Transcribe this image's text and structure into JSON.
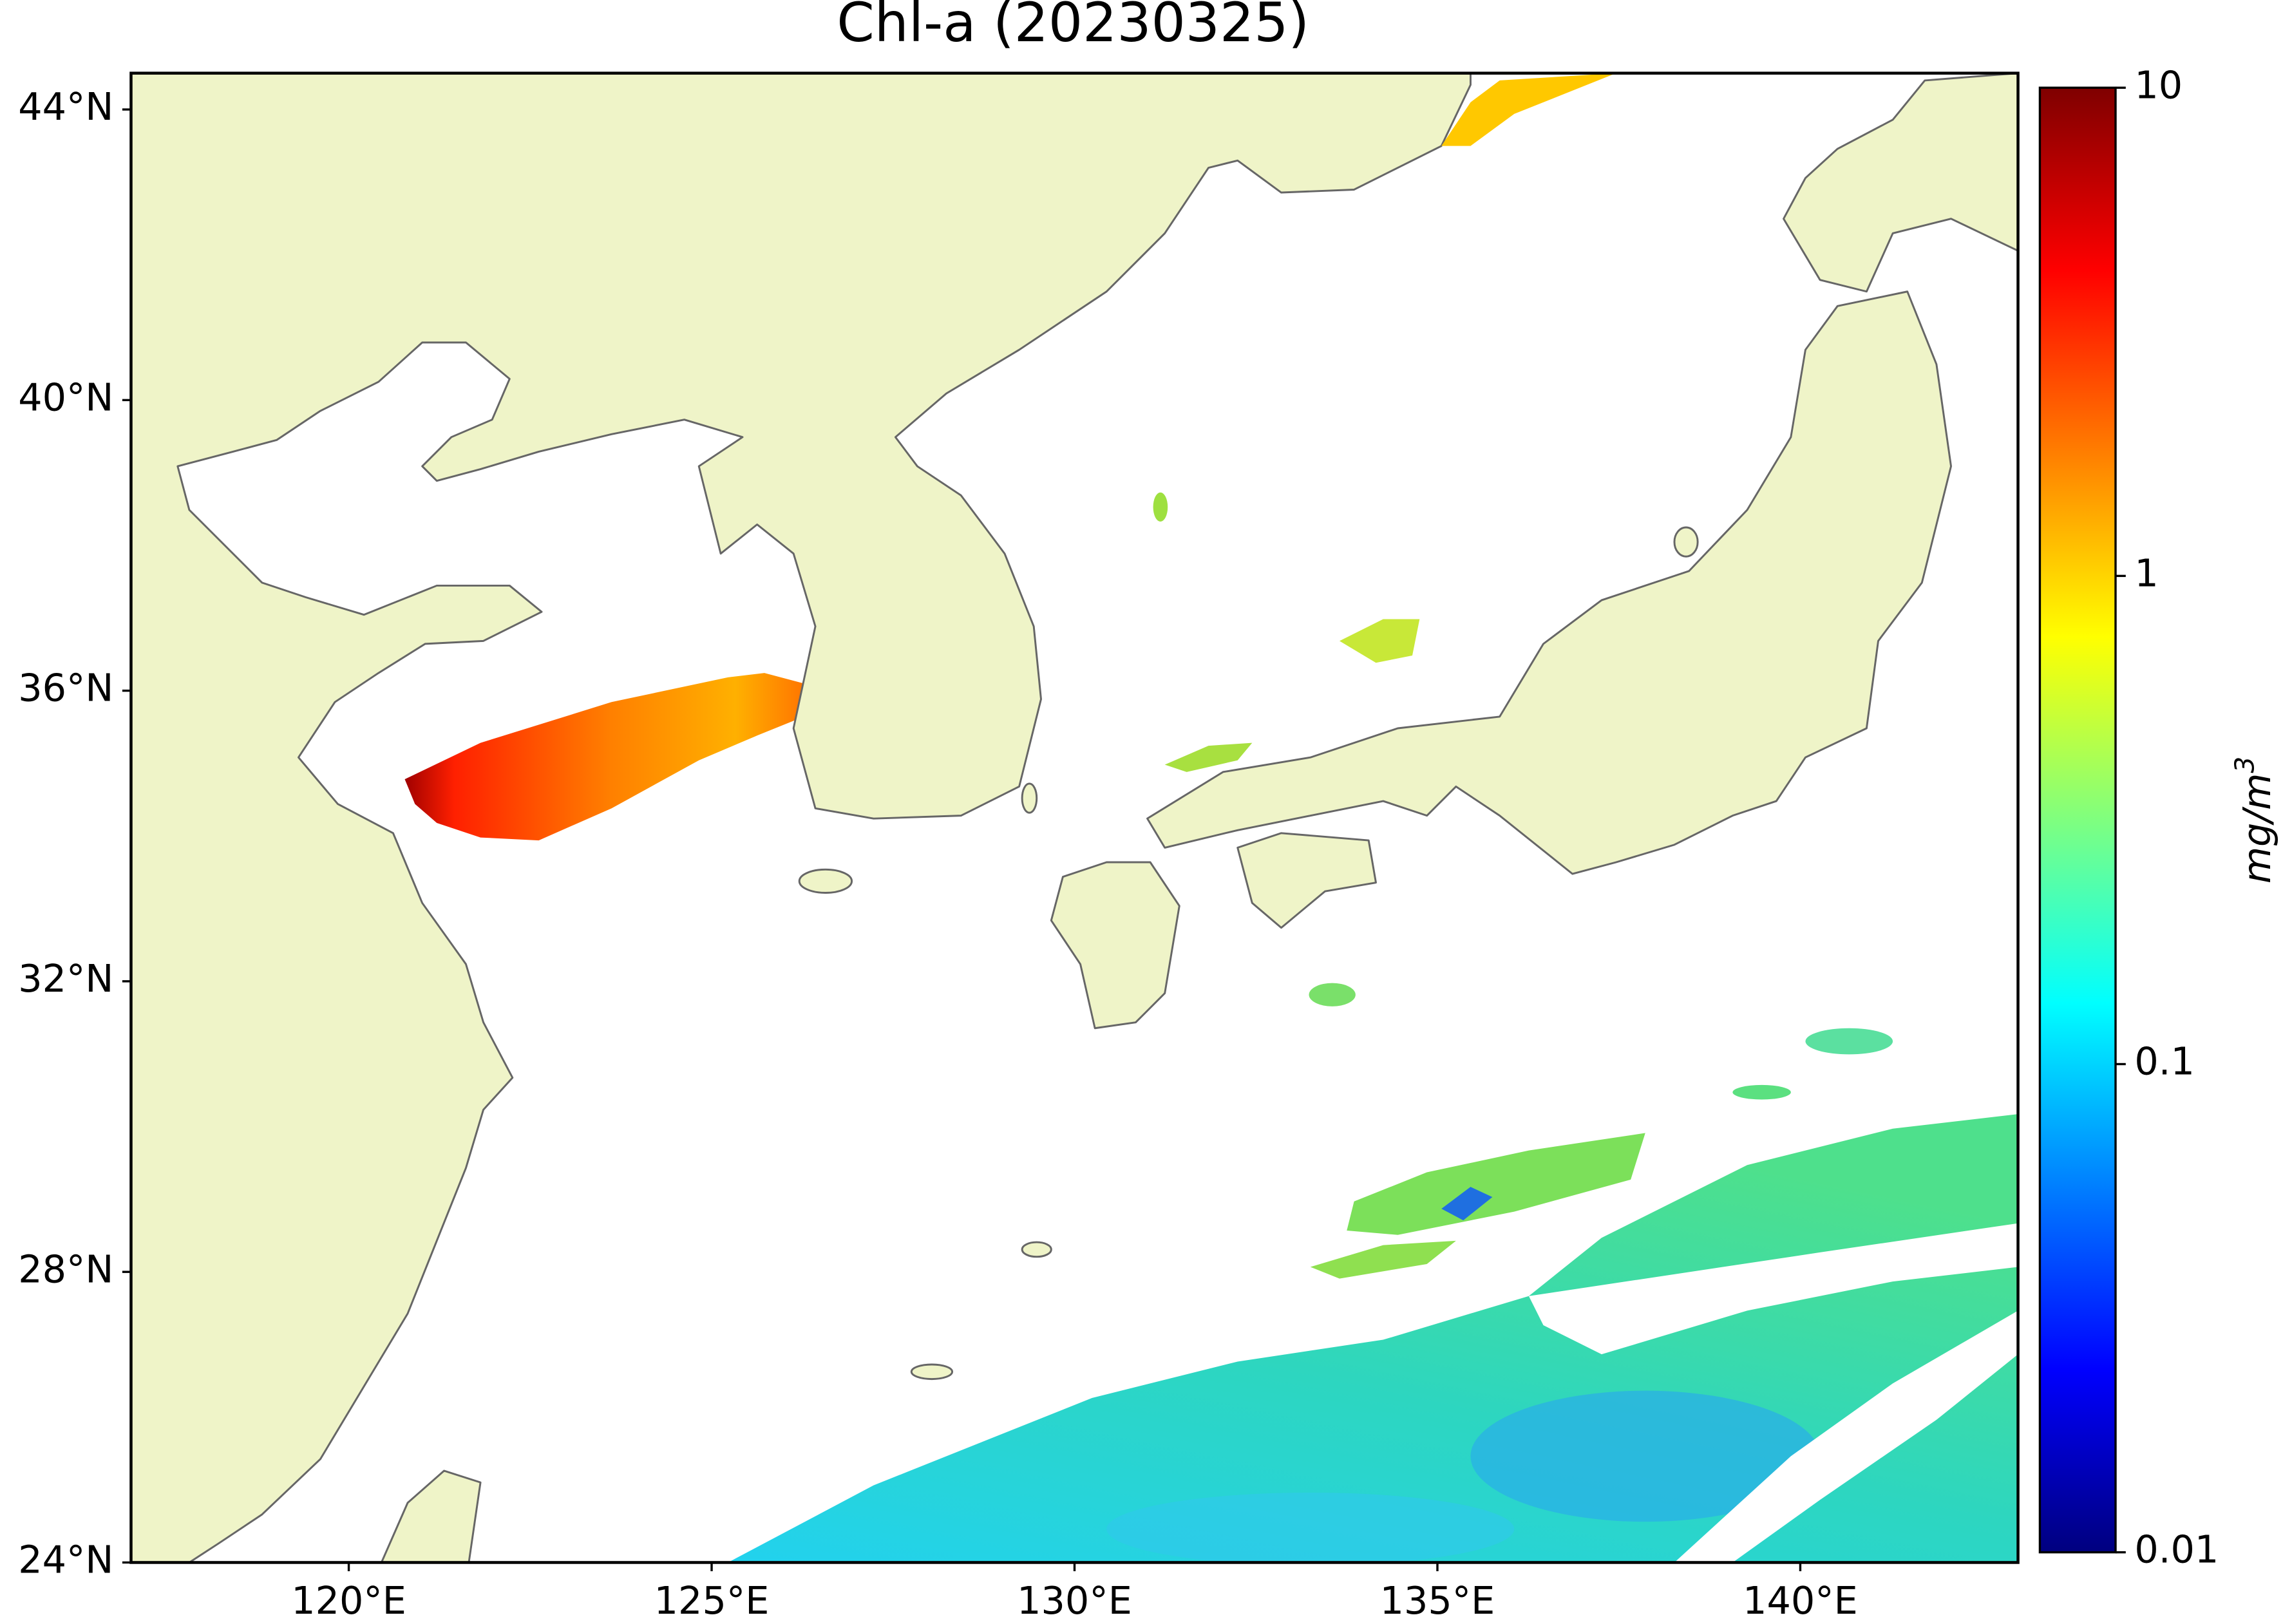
{
  "chart_data": {
    "type": "map",
    "title": "Chl-a (20230325)",
    "xlim": [
      117,
      143
    ],
    "ylim": [
      24,
      44.5
    ],
    "xticks": [
      {
        "value": 120,
        "label": "120°E"
      },
      {
        "value": 125,
        "label": "125°E"
      },
      {
        "value": 130,
        "label": "130°E"
      },
      {
        "value": 135,
        "label": "135°E"
      },
      {
        "value": 140,
        "label": "140°E"
      }
    ],
    "yticks": [
      {
        "value": 24,
        "label": "24°N"
      },
      {
        "value": 28,
        "label": "28°N"
      },
      {
        "value": 32,
        "label": "32°N"
      },
      {
        "value": 36,
        "label": "36°N"
      },
      {
        "value": 40,
        "label": "40°N"
      },
      {
        "value": 44,
        "label": "44°N"
      }
    ],
    "colormap": "jet",
    "color_scale": "log",
    "clim": [
      0.01,
      10
    ],
    "cticks": [
      0.01,
      0.1,
      1,
      10
    ],
    "colorbar_label": {
      "base": "mg/m",
      "sup": "3"
    }
  }
}
